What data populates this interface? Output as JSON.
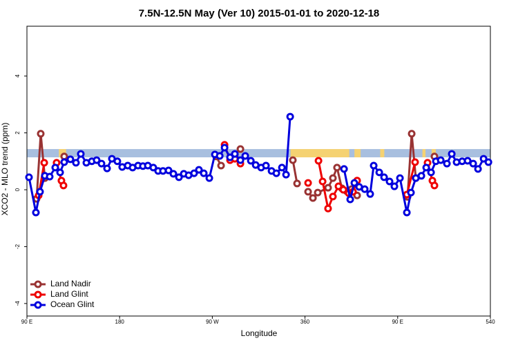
{
  "chart_data": {
    "type": "line",
    "title": "7.5N-12.5N May (Ver 10)   2015-01-01 to 2020-12-18",
    "xlabel": "Longitude",
    "ylabel": "XCO2 - MLO trend (ppm)",
    "xlim": [
      90,
      540
    ],
    "ylim": [
      -4.44,
      5.75
    ],
    "xticks": [
      {
        "value": 90,
        "label": "90 E"
      },
      180,
      {
        "value": 270,
        "label": "90 W"
      },
      360,
      {
        "value": 450,
        "label": "90 E"
      },
      540
    ],
    "yticks": [
      -4,
      -2,
      0,
      2,
      4
    ],
    "legend": "bottom-left",
    "surface_band": {
      "range": [
        1.14,
        1.43
      ],
      "ocean_color": "#a8bfdf",
      "land_color": "#f5d272",
      "land": [
        [
          121,
          128
        ],
        [
          346,
          403
        ],
        [
          408,
          414
        ],
        [
          433,
          437
        ],
        [
          474,
          477
        ],
        [
          483,
          487
        ]
      ]
    },
    "series": [
      {
        "name": "Land Nadir",
        "color": "#993333",
        "x": [
          99.4,
          103.4,
          107.4,
          null,
          126.2,
          null,
          273.8,
          278.5,
          null,
          291.9,
          297.3,
          null,
          348.2,
          352.3,
          null,
          363.0,
          367.7,
          372.4,
          382.4,
          387.1,
          391.1,
          395.8,
          400.5,
          405.2,
          410.6,
          null,
          459.6,
          463.6,
          467.6,
          null,
          485.7
        ],
        "values": [
          -0.32,
          1.97,
          0.41,
          null,
          1.17,
          null,
          1.17,
          0.85,
          null,
          1.24,
          1.43,
          null,
          1.04,
          0.22,
          null,
          -0.07,
          -0.29,
          -0.1,
          0.07,
          0.41,
          0.78,
          0.05,
          -0.05,
          0.02,
          -0.2,
          null,
          -0.25,
          1.97,
          0.41,
          null,
          1.17
        ]
      },
      {
        "name": "Land Glint",
        "color": "#ee0000",
        "x": [
          101.4,
          106.8,
          null,
          118.8,
          123.5,
          125.5,
          null,
          281.9,
          287.2,
          291.9,
          297.3,
          null,
          363.0,
          null,
          373.1,
          377.1,
          382.4,
          387.1,
          392.5,
          397.2,
          402.5,
          406.6,
          410.6,
          null,
          458.9,
          466.9,
          null,
          479.0,
          483.7,
          485.7
        ],
        "values": [
          -0.2,
          0.95,
          null,
          0.95,
          0.32,
          0.15,
          null,
          1.58,
          1.04,
          1.09,
          0.92,
          null,
          0.24,
          null,
          1.02,
          0.29,
          -0.66,
          -0.24,
          0.12,
          0.0,
          -0.12,
          -0.07,
          0.32,
          null,
          -0.17,
          0.97,
          null,
          0.95,
          0.32,
          0.15
        ]
      },
      {
        "name": "Ocean Glint",
        "color": "#0000dd",
        "x": [
          92.0,
          98.7,
          102.7,
          107.4,
          112.1,
          117.5,
          122.2,
          126.2,
          132.2,
          137.6,
          142.3,
          147.7,
          153.0,
          157.7,
          162.4,
          167.8,
          172.5,
          177.8,
          182.5,
          187.9,
          192.6,
          197.9,
          202.6,
          207.4,
          212.7,
          217.4,
          222.1,
          227.5,
          232.2,
          237.6,
          242.3,
          247.0,
          252.3,
          257.0,
          261.7,
          267.1,
          272.5,
          277.2,
          281.9,
          287.2,
          291.9,
          297.3,
          302.0,
          307.4,
          312.1,
          317.4,
          322.1,
          327.5,
          332.2,
          337.6,
          341.6,
          345.6,
          null,
          397.9,
          403.9,
          407.9,
          412.6,
          418.0,
          423.3,
          426.7,
          432.1,
          436.8,
          442.1,
          446.8,
          452.2,
          458.9,
          462.9,
          467.6,
          473.0,
          477.7,
          482.4,
          487.1,
          491.8,
          497.8,
          502.5,
          507.2,
          512.6,
          517.9,
          523.3,
          528.0,
          533.4,
          538.1
        ],
        "values": [
          0.44,
          -0.8,
          -0.07,
          0.49,
          0.46,
          0.78,
          0.61,
          0.97,
          1.07,
          0.95,
          1.26,
          0.95,
          1.0,
          1.04,
          0.92,
          0.75,
          1.09,
          1.0,
          0.8,
          0.85,
          0.78,
          0.85,
          0.83,
          0.85,
          0.78,
          0.66,
          0.66,
          0.68,
          0.56,
          0.44,
          0.56,
          0.51,
          0.58,
          0.7,
          0.58,
          0.41,
          1.24,
          1.19,
          1.48,
          1.14,
          1.26,
          1.04,
          1.19,
          1.02,
          0.87,
          0.78,
          0.85,
          0.66,
          0.58,
          0.78,
          0.53,
          2.57,
          null,
          0.73,
          -0.34,
          0.24,
          0.1,
          0.02,
          -0.15,
          0.85,
          0.61,
          0.44,
          0.29,
          0.12,
          0.41,
          -0.8,
          -0.1,
          0.41,
          0.49,
          0.78,
          0.61,
          1.0,
          1.04,
          0.92,
          1.26,
          0.97,
          1.0,
          1.02,
          0.92,
          0.73,
          1.09,
          0.97
        ]
      }
    ]
  }
}
